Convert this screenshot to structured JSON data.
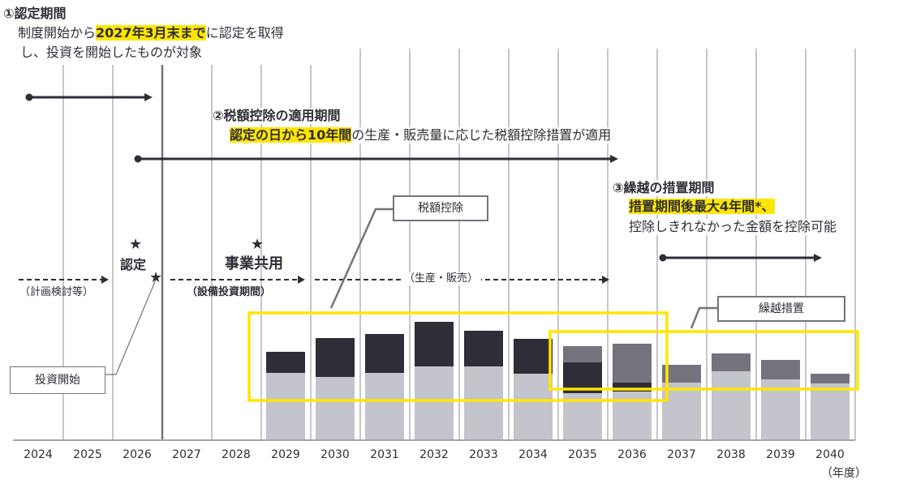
{
  "section1": {
    "title": "①認定期間",
    "line1_pre": "制度開始から",
    "line1_highlight": "2027年3月末まで",
    "line1_post": "に認定を取得",
    "line2": "し、投資を開始したものが対象"
  },
  "section2": {
    "title": "②税額控除の適用期間",
    "line1_highlight": "認定の日から10年間",
    "line1_post": "の生産・販売量に応じた税額控除措置が適用"
  },
  "section3": {
    "title": "③繰越の措置期間",
    "line1_highlight": "措置期間後最大4年間*、",
    "line2": "控除しきれなかった金額を控除可能"
  },
  "milestones": {
    "star": "★",
    "certification": "認定",
    "business_use": "事業共用"
  },
  "phases": {
    "planning": "（計画検討等）",
    "investment": "（設備投資期間）",
    "production": "（生産・販売）"
  },
  "callouts": {
    "tax_credit": "税額控除",
    "carryover": "繰越措置",
    "investment_start": "投資開始"
  },
  "axis": {
    "years": [
      "2024",
      "2025",
      "2026",
      "2027",
      "2028",
      "2029",
      "2030",
      "2031",
      "2032",
      "2033",
      "2034",
      "2035",
      "2036",
      "2037",
      "2038",
      "2039",
      "2040"
    ],
    "unit": "（年度）"
  },
  "colors": {
    "base": "#c4c4cc",
    "tax_credit": "#2e2e38",
    "carryover": "#74737e",
    "highlight": "#ffe600"
  },
  "chart_data": {
    "type": "bar",
    "stacked": true,
    "value_units": "relative (no axis printed)",
    "categories": [
      "2029",
      "2030",
      "2031",
      "2032",
      "2033",
      "2034",
      "2035",
      "2036",
      "2037",
      "2038",
      "2039",
      "2040"
    ],
    "series": [
      {
        "key": "base",
        "values": [
          83,
          78,
          83,
          91,
          91,
          82,
          58,
          60,
          71,
          85,
          75,
          70
        ]
      },
      {
        "key": "tax_credit",
        "values": [
          26,
          48,
          48,
          55,
          44,
          43,
          38,
          11,
          0,
          0,
          0,
          0
        ]
      },
      {
        "key": "carryover",
        "values": [
          0,
          0,
          0,
          0,
          0,
          0,
          20,
          48,
          22,
          22,
          24,
          12
        ]
      }
    ]
  }
}
